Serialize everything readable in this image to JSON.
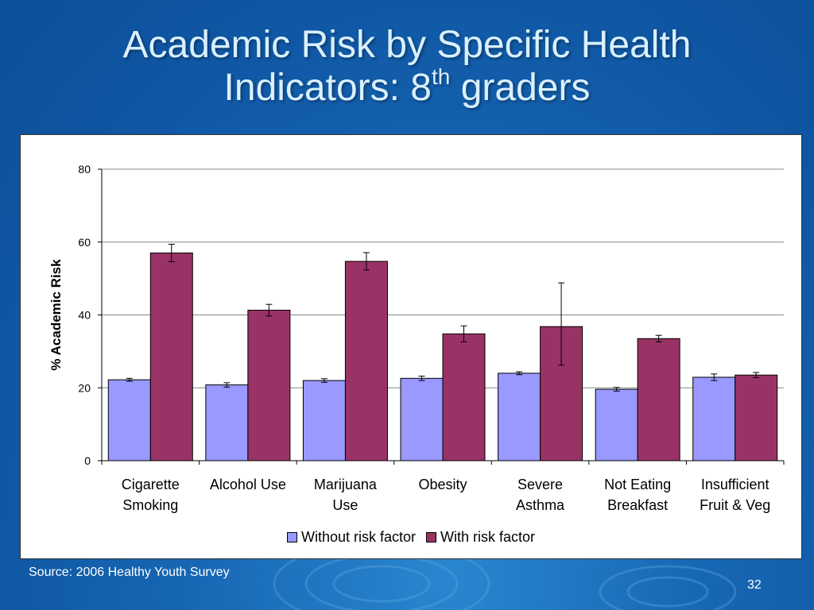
{
  "slide": {
    "title_main": "Academic Risk by Specific Health",
    "title_line2_prefix": "Indicators: 8",
    "title_superscript": "th",
    "title_line2_suffix": " graders",
    "source": "Source: 2006 Healthy Youth Survey",
    "page_number": "32"
  },
  "chart_data": {
    "type": "bar",
    "ylabel": "% Academic Risk",
    "ylim": [
      0,
      80
    ],
    "yticks": [
      0,
      20,
      40,
      60,
      80
    ],
    "grid": true,
    "legend_position": "bottom",
    "categories": [
      [
        "Cigarette",
        "Smoking"
      ],
      [
        "Alcohol Use"
      ],
      [
        "Marijuana",
        "Use"
      ],
      [
        "Obesity"
      ],
      [
        "Severe",
        "Asthma"
      ],
      [
        "Not Eating",
        "Breakfast"
      ],
      [
        "Insufficient",
        "Fruit & Veg"
      ]
    ],
    "series": [
      {
        "name": "Without risk factor",
        "color": "#9999ff",
        "values": [
          22.2,
          20.8,
          22.0,
          22.6,
          24.0,
          19.6,
          22.9
        ],
        "error_low": [
          21.8,
          20.2,
          21.5,
          22.0,
          23.6,
          19.1,
          22.0
        ],
        "error_high": [
          22.6,
          21.4,
          22.5,
          23.2,
          24.4,
          20.1,
          23.8
        ]
      },
      {
        "name": "With risk factor",
        "color": "#993366",
        "values": [
          57.0,
          41.3,
          54.7,
          34.8,
          36.8,
          33.5,
          23.5
        ],
        "error_low": [
          54.6,
          39.7,
          52.3,
          32.6,
          26.2,
          32.6,
          22.8
        ],
        "error_high": [
          59.4,
          42.9,
          57.1,
          37.0,
          48.8,
          34.4,
          24.2
        ]
      }
    ]
  }
}
